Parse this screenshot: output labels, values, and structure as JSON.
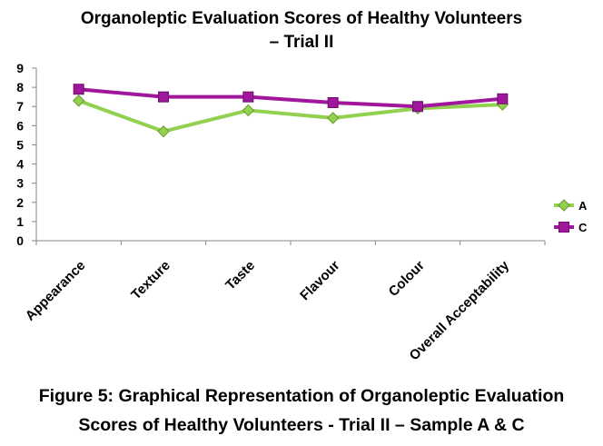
{
  "chart_data": {
    "type": "line",
    "title_line1": "Organoleptic Evaluation Scores of Healthy Volunteers",
    "title_line2": "– Trial II",
    "categories": [
      "Appearance",
      "Texture",
      "Taste",
      "Flavour",
      "Colour",
      "Overall Acceptability"
    ],
    "series": [
      {
        "name": "A",
        "values": [
          7.3,
          5.7,
          6.8,
          6.4,
          6.9,
          7.1
        ],
        "color": "#92d050",
        "marker": "diamond"
      },
      {
        "name": "C",
        "values": [
          7.9,
          7.5,
          7.5,
          7.2,
          7.0,
          7.4
        ],
        "color": "#a0169c",
        "marker": "square"
      }
    ],
    "ylim": [
      0,
      9
    ],
    "yticks": [
      0,
      1,
      2,
      3,
      4,
      5,
      6,
      7,
      8,
      9
    ],
    "grid": false,
    "legend_position": "right"
  },
  "caption": {
    "line1": "Figure 5: Graphical Representation of Organoleptic Evaluation",
    "line2": "Scores of Healthy Volunteers - Trial II – Sample A & C"
  }
}
